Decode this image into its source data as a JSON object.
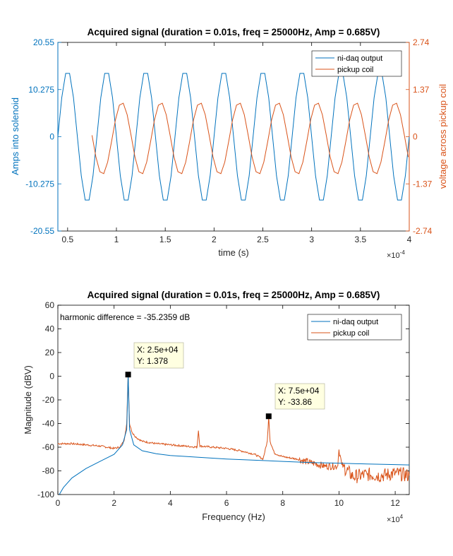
{
  "chart_data": [
    {
      "type": "line",
      "title": "Acquired signal (duration = 0.01s, freq = 25000Hz, Amp = 0.685V)",
      "xlabel": "time (s)",
      "x_exponent": "×10",
      "x_exponent_power": "-4",
      "ylabel_left": "Amps into solenoid",
      "ylabel_right": "voltage across pickup coil",
      "xlim": [
        0.4,
        4.0
      ],
      "ylim_left": [
        -20.55,
        20.55
      ],
      "ylim_right": [
        -2.74,
        2.74
      ],
      "x_ticks": [
        "0.5",
        "1",
        "1.5",
        "2",
        "2.5",
        "3",
        "3.5",
        "4"
      ],
      "y_left_ticks": [
        "-20.55",
        "-10.275",
        "0",
        "10.275",
        "20.55"
      ],
      "y_right_ticks": [
        "-2.74",
        "-1.37",
        "0",
        "1.37",
        "2.74"
      ],
      "legend_position": "top-right",
      "colors": {
        "left_axis": "#0072BD",
        "right_axis": "#D95319"
      },
      "series": [
        {
          "name": "ni-daq output",
          "color": "#0072BD",
          "axis": "left",
          "frequency_hz": 25000,
          "amplitude": 14.5,
          "x_start": 0.4,
          "x_end": 4.0,
          "samples_per_period": 10,
          "phase_deg": 0
        },
        {
          "name": "pickup coil",
          "color": "#D95319",
          "axis": "right",
          "frequency_hz": 25000,
          "amplitude": 1.05,
          "offset": -0.05,
          "x_start": 0.75,
          "x_end": 4.0,
          "samples_per_period": 10,
          "phase_deg": -140
        }
      ]
    },
    {
      "type": "line",
      "title": "Acquired signal (duration = 0.01s, freq = 25000Hz, Amp = 0.685V)",
      "xlabel": "Frequency (Hz)",
      "x_exponent": "×10",
      "x_exponent_power": "4",
      "ylabel": "Magnitude (dBV)",
      "xlim": [
        0,
        12.5
      ],
      "ylim": [
        -100,
        60
      ],
      "x_ticks": [
        "0",
        "2",
        "4",
        "6",
        "8",
        "10",
        "12"
      ],
      "y_ticks": [
        "-100",
        "-80",
        "-60",
        "-40",
        "-20",
        "0",
        "20",
        "40",
        "60"
      ],
      "annotation": "harmonic difference = -35.2359 dB",
      "legend_position": "top-right",
      "series": [
        {
          "name": "ni-daq output",
          "color": "#0072BD"
        },
        {
          "name": "pickup coil",
          "color": "#D95319"
        }
      ],
      "peaks": [
        {
          "x": 2.5,
          "y": 1.378,
          "x_label": "X: 2.5e+04",
          "y_label": "Y: 1.378"
        },
        {
          "x": 7.5,
          "y": -33.86,
          "x_label": "X: 7.5e+04",
          "y_label": "Y: -33.86"
        }
      ],
      "blue_curve": [
        [
          0.05,
          -100
        ],
        [
          0.2,
          -94
        ],
        [
          0.5,
          -86
        ],
        [
          1.0,
          -78
        ],
        [
          1.5,
          -72
        ],
        [
          2.0,
          -66
        ],
        [
          2.3,
          -58
        ],
        [
          2.45,
          -45
        ],
        [
          2.5,
          1.378
        ],
        [
          2.55,
          -45
        ],
        [
          2.7,
          -58
        ],
        [
          3.0,
          -63
        ],
        [
          3.5,
          -65.5
        ],
        [
          4.0,
          -67
        ],
        [
          5.0,
          -68.5
        ],
        [
          6.0,
          -70
        ],
        [
          7.0,
          -71
        ],
        [
          8.0,
          -72
        ],
        [
          9.0,
          -73
        ],
        [
          10.0,
          -73.5
        ],
        [
          11.0,
          -74.2
        ],
        [
          12.0,
          -74.7
        ],
        [
          12.5,
          -75
        ]
      ],
      "orange_curve": [
        [
          0.0,
          -57
        ],
        [
          0.5,
          -57
        ],
        [
          1.0,
          -58
        ],
        [
          1.5,
          -59
        ],
        [
          2.0,
          -61
        ],
        [
          2.2,
          -60
        ],
        [
          2.35,
          -55
        ],
        [
          2.45,
          -40
        ],
        [
          2.5,
          1.378
        ],
        [
          2.55,
          -40
        ],
        [
          2.65,
          -48
        ],
        [
          2.8,
          -52
        ],
        [
          3.0,
          -55
        ],
        [
          3.5,
          -57
        ],
        [
          4.0,
          -58
        ],
        [
          4.5,
          -59
        ],
        [
          4.95,
          -60
        ],
        [
          5.0,
          -46
        ],
        [
          5.05,
          -59
        ],
        [
          5.5,
          -60
        ],
        [
          6.0,
          -61
        ],
        [
          6.5,
          -63
        ],
        [
          7.0,
          -66
        ],
        [
          7.3,
          -70
        ],
        [
          7.45,
          -55
        ],
        [
          7.5,
          -33.86
        ],
        [
          7.55,
          -55
        ],
        [
          7.7,
          -65
        ],
        [
          8.0,
          -68
        ],
        [
          8.5,
          -70
        ],
        [
          9.0,
          -73
        ],
        [
          9.5,
          -76
        ],
        [
          9.95,
          -76
        ],
        [
          10.0,
          -62
        ],
        [
          10.1,
          -75
        ],
        [
          10.5,
          -85
        ],
        [
          11.0,
          -83
        ],
        [
          11.5,
          -84
        ],
        [
          12.0,
          -82
        ],
        [
          12.5,
          -84
        ]
      ],
      "orange_noise": [
        {
          "from": 8.6,
          "to": 10.2,
          "amplitude": 3.0
        },
        {
          "from": 10.2,
          "to": 12.5,
          "amplitude": 6.0
        }
      ]
    }
  ]
}
